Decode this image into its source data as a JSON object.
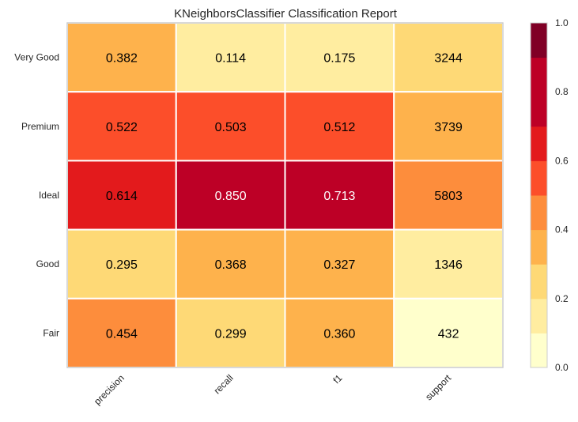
{
  "chart_data": {
    "type": "heatmap",
    "title": "KNeighborsClassifier Classification Report",
    "rows": [
      "Very Good",
      "Premium",
      "Ideal",
      "Good",
      "Fair"
    ],
    "columns": [
      "precision",
      "recall",
      "f1",
      "support"
    ],
    "values": [
      [
        0.382,
        0.114,
        0.175,
        0.2643
      ],
      [
        0.522,
        0.503,
        0.512,
        0.3047
      ],
      [
        0.614,
        0.85,
        0.713,
        0.4729
      ],
      [
        0.295,
        0.368,
        0.327,
        0.1097
      ],
      [
        0.454,
        0.299,
        0.36,
        0.0352
      ]
    ],
    "labels": [
      [
        "0.382",
        "0.114",
        "0.175",
        "3244"
      ],
      [
        "0.522",
        "0.503",
        "0.512",
        "3739"
      ],
      [
        "0.614",
        "0.850",
        "0.713",
        "5803"
      ],
      [
        "0.295",
        "0.368",
        "0.327",
        "1346"
      ],
      [
        "0.454",
        "0.299",
        "0.360",
        "432"
      ]
    ],
    "colorbar": {
      "ticks": [
        "0.0",
        "0.2",
        "0.4",
        "0.6",
        "0.8",
        "1.0"
      ],
      "range": [
        0,
        1
      ],
      "levels": 10,
      "colors": [
        "#ffffcc",
        "#ffeda0",
        "#fed976",
        "#feb24c",
        "#fd8d3c",
        "#fc4e2a",
        "#e31a1c",
        "#bd0026",
        "#bd0026",
        "#800026"
      ]
    }
  }
}
